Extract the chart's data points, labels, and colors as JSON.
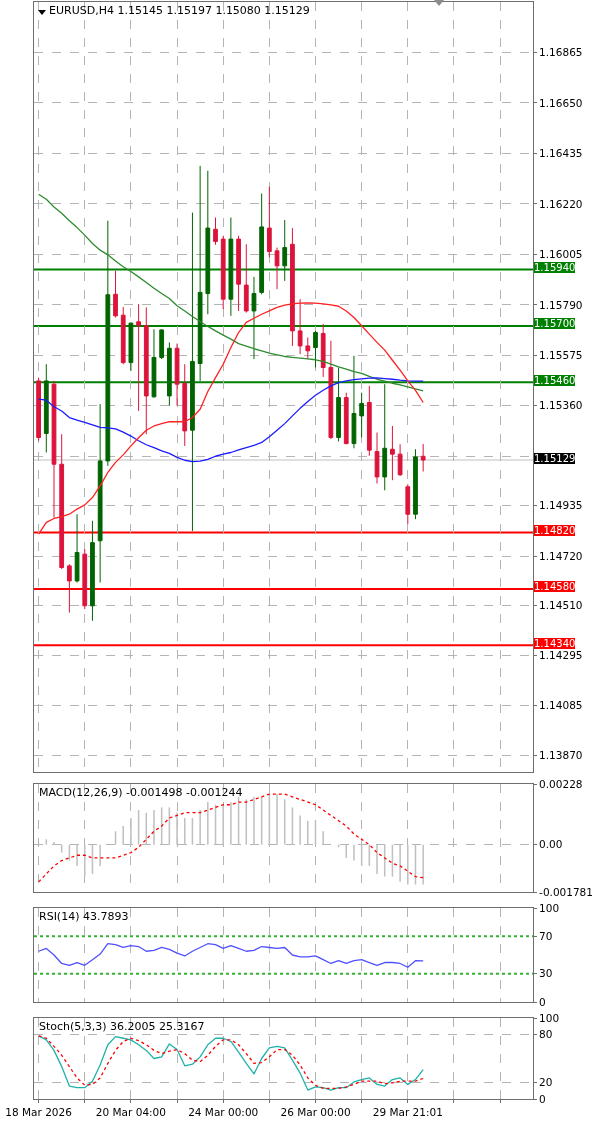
{
  "chart_data": [
    {
      "type": "candlestick",
      "title": "EURUSD,H4 1.15145 1.15197 1.15080 1.15129",
      "categories": [
        null,
        null,
        null,
        null,
        null,
        null,
        null,
        null,
        null,
        null,
        null,
        null,
        null,
        null,
        null,
        null,
        null,
        null,
        null,
        null,
        null,
        null,
        null,
        null,
        null,
        null,
        null,
        null,
        null,
        null,
        null,
        null,
        null,
        null,
        null,
        null,
        null,
        null,
        null,
        null,
        null,
        null,
        null,
        null,
        null,
        null,
        null,
        null,
        null,
        null,
        null
      ],
      "ohlc": [
        [
          1.15466,
          1.1548,
          1.15211,
          1.15225
        ],
        [
          1.15242,
          1.15537,
          1.15161,
          1.15466
        ],
        [
          1.15452,
          1.15466,
          1.14884,
          1.15111
        ],
        [
          1.15111,
          1.15239,
          1.14665,
          1.14671
        ],
        [
          1.14678,
          1.14685,
          1.14479,
          1.14614
        ],
        [
          1.14614,
          1.14898,
          1.14607,
          1.14735
        ],
        [
          1.14728,
          1.14749,
          1.14494,
          1.14508
        ],
        [
          1.14508,
          1.1487,
          1.14444,
          1.14777
        ],
        [
          1.14785,
          1.15367,
          1.14607,
          1.15125
        ],
        [
          1.15125,
          1.16148,
          1.15104,
          1.15833
        ],
        [
          1.15835,
          1.15935,
          1.15736,
          1.15743
        ],
        [
          1.15746,
          1.15781,
          1.15537,
          1.15544
        ],
        [
          1.15544,
          1.15715,
          1.15509,
          1.15712
        ],
        [
          1.15718,
          1.15793,
          1.15338,
          1.15701
        ],
        [
          1.15701,
          1.15779,
          1.15239,
          1.15402
        ],
        [
          1.15398,
          1.15686,
          1.15395,
          1.15566
        ],
        [
          1.15566,
          1.15686,
          1.15559,
          1.15683
        ],
        [
          1.15402,
          1.1563,
          1.1536,
          1.15605
        ],
        [
          1.15605,
          1.15625,
          1.1536,
          1.15452
        ],
        [
          1.15455,
          1.15537,
          1.15189,
          1.15253
        ],
        [
          1.15256,
          1.16183,
          1.14827,
          1.15549
        ],
        [
          1.1554,
          1.16382,
          1.15466,
          1.15843
        ],
        [
          1.15838,
          1.16361,
          1.1575,
          1.16117
        ],
        [
          1.16112,
          1.16162,
          1.16046,
          1.1606
        ],
        [
          1.1607,
          1.16084,
          1.15772,
          1.15814
        ],
        [
          1.15814,
          1.16162,
          1.15743,
          1.1607
        ],
        [
          1.1607,
          1.16084,
          1.15764,
          1.15878
        ],
        [
          1.15874,
          1.16048,
          1.15757,
          1.15764
        ],
        [
          1.15764,
          1.15909,
          1.15559,
          1.15838
        ],
        [
          1.15843,
          1.16264,
          1.15835,
          1.16122
        ],
        [
          1.16117,
          1.16293,
          1.15992,
          1.16017
        ],
        [
          1.1602,
          1.16034,
          1.15857,
          1.15956
        ],
        [
          1.15956,
          1.16151,
          1.15892,
          1.16034
        ],
        [
          1.16048,
          1.16117,
          1.15615,
          1.15679
        ],
        [
          1.15679,
          1.15814,
          1.1558,
          1.15615
        ],
        [
          1.15615,
          1.15651,
          1.15559,
          1.15594
        ],
        [
          1.15608,
          1.15679,
          1.15523,
          1.15672
        ],
        [
          1.15668,
          1.15708,
          1.15483,
          1.15523
        ],
        [
          1.15523,
          1.15637,
          1.15218,
          1.15225
        ],
        [
          1.15225,
          1.15523,
          1.15208,
          1.15395
        ],
        [
          1.15395,
          1.15416,
          1.15196,
          1.15199
        ],
        [
          1.15199,
          1.15573,
          1.15179,
          1.15327
        ],
        [
          1.15317,
          1.15416,
          1.15225,
          1.1537
        ],
        [
          1.15374,
          1.15445,
          1.15147,
          1.15171
        ],
        [
          1.15165,
          1.15246,
          1.15029,
          1.15057
        ],
        [
          1.15057,
          1.15452,
          1.15,
          1.15179
        ],
        [
          1.15175,
          1.15274,
          1.15043,
          1.15154
        ],
        [
          1.15154,
          1.15196,
          1.15062,
          1.15066
        ],
        [
          1.15015,
          1.15026,
          1.14856,
          1.14898
        ],
        [
          1.14898,
          1.15175,
          1.14877,
          1.15142
        ],
        [
          1.15145,
          1.15197,
          1.1508,
          1.15129
        ]
      ],
      "colors": [
        "#dc143c",
        "#006400",
        "#dc143c",
        "#dc143c",
        "#dc143c",
        "#006400",
        "#dc143c",
        "#006400",
        "#006400",
        "#006400",
        "#dc143c",
        "#dc143c",
        "#006400",
        "#dc143c",
        "#dc143c",
        "#006400",
        "#006400",
        "#006400",
        "#dc143c",
        "#dc143c",
        "#006400",
        "#006400",
        "#006400",
        "#dc143c",
        "#dc143c",
        "#006400",
        "#dc143c",
        "#dc143c",
        "#006400",
        "#006400",
        "#dc143c",
        "#dc143c",
        "#006400",
        "#dc143c",
        "#dc143c",
        "#dc143c",
        "#006400",
        "#dc143c",
        "#dc143c",
        "#006400",
        "#dc143c",
        "#006400",
        "#006400",
        "#dc143c",
        "#dc143c",
        "#006400",
        "#dc143c",
        "#dc143c",
        "#dc143c",
        "#006400",
        "#dc143c"
      ],
      "series": [
        {
          "type": "line",
          "color": "#2e8b2e",
          "values": [
            1.16261,
            1.1624,
            1.16207,
            1.1618,
            1.16148,
            1.16119,
            1.16087,
            1.16051,
            1.16023,
            1.16003,
            1.15977,
            1.15952,
            1.15932,
            1.15909,
            1.15885,
            1.15861,
            1.15838,
            1.15817,
            1.15786,
            1.15764,
            1.1574,
            1.15719,
            1.15698,
            1.15679,
            1.15661,
            1.15644,
            1.15625,
            1.15614,
            1.15603,
            1.15594,
            1.15584,
            1.15577,
            1.1557,
            1.15566,
            1.15563,
            1.1556,
            1.15556,
            1.15549,
            1.15537,
            1.15526,
            1.15516,
            1.15506,
            1.15498,
            1.15485,
            1.15473,
            1.15465,
            1.15456,
            1.15449,
            1.15441,
            1.15432,
            1.15424
          ]
        },
        {
          "type": "line",
          "color": "#1a1aff",
          "values": [
            1.15388,
            1.15384,
            1.15356,
            1.15338,
            1.1531,
            1.15299,
            1.15289,
            1.15279,
            1.15268,
            1.15266,
            1.15262,
            1.15248,
            1.15231,
            1.15211,
            1.15194,
            1.15182,
            1.15168,
            1.15157,
            1.1514,
            1.15128,
            1.15122,
            1.15124,
            1.15132,
            1.15145,
            1.15154,
            1.15161,
            1.15172,
            1.15182,
            1.15191,
            1.15204,
            1.15228,
            1.15256,
            1.15284,
            1.15317,
            1.15349,
            1.15378,
            1.15405,
            1.15426,
            1.15445,
            1.15459,
            1.15466,
            1.15471,
            1.15475,
            1.15478,
            1.15479,
            1.15476,
            1.15473,
            1.15469,
            1.15466,
            1.15465,
            1.15465
          ]
        },
        {
          "type": "line",
          "color": "#ff2020",
          "values": [
            1.14813,
            1.14863,
            1.1488,
            1.14888,
            1.14898,
            1.1492,
            1.14938,
            1.14969,
            1.15019,
            1.15076,
            1.15119,
            1.15151,
            1.15189,
            1.15224,
            1.15256,
            1.15274,
            1.15284,
            1.15292,
            1.15292,
            1.15292,
            1.1531,
            1.15345,
            1.15421,
            1.1548,
            1.15537,
            1.15608,
            1.15672,
            1.15715,
            1.15733,
            1.1575,
            1.15764,
            1.15779,
            1.15789,
            1.15794,
            1.15797,
            1.15798,
            1.15797,
            1.15794,
            1.1579,
            1.15784,
            1.15764,
            1.15736,
            1.15701,
            1.15665,
            1.1563,
            1.15597,
            1.15554,
            1.15512,
            1.15466,
            1.15426,
            1.15374
          ]
        }
      ],
      "ylim": [
        1.138,
        1.1708
      ],
      "yticks": [
        1.16865,
        {
          "value": 1.1665,
          "label": "1.16650"
        },
        1.16435,
        {
          "value": 1.1622,
          "label": "1.16220"
        },
        1.16005,
        {
          "value": 1.1579,
          "label": "1.15790"
        },
        1.15575,
        {
          "value": 1.1536,
          "label": "1.15360"
        },
        {
          "value": 1.15145,
          "label": null
        },
        1.14935,
        {
          "value": 1.1472,
          "label": "1.14720"
        },
        {
          "value": 1.1451,
          "label": "1.14510"
        },
        1.14295,
        1.14085,
        {
          "value": 1.1387,
          "label": "1.13870"
        }
      ],
      "ref_lines": [
        {
          "axis": "y",
          "value": 1.1594,
          "label": "1.15940",
          "color": "#008000"
        },
        {
          "axis": "y",
          "value": 1.157,
          "label": "1.15700",
          "color": "#008000"
        },
        {
          "axis": "y",
          "value": 1.1546,
          "label": "1.15460",
          "color": "#008000"
        },
        {
          "axis": "y",
          "value": 1.15129,
          "label": "1.15129",
          "color": "#c0c0c0"
        },
        {
          "axis": "y",
          "value": 1.1482,
          "label": "1.14820",
          "color": "#ff0000"
        },
        {
          "axis": "y",
          "value": 1.1458,
          "label": "1.14580",
          "color": "#ff0000"
        },
        {
          "axis": "y",
          "value": 1.1434,
          "label": "1.14340",
          "color": "#ff0000"
        }
      ],
      "grid": true,
      "tick_labels": "y"
    },
    {
      "type": "bar",
      "title": "MACD(12,26,9) -0.001498 -0.001244",
      "categories": [
        null,
        null,
        null,
        null,
        null,
        null,
        null,
        null,
        null,
        null,
        null,
        null,
        null,
        null,
        null,
        null,
        null,
        null,
        null,
        null,
        null,
        null,
        null,
        null,
        null,
        null,
        null,
        null,
        null,
        null,
        null,
        null,
        null,
        null,
        null,
        null,
        null,
        null,
        null,
        null,
        null,
        null,
        null,
        null,
        null,
        null,
        null,
        null,
        null,
        null,
        null
      ],
      "series": [
        {
          "color": "#c0c0c0",
          "values": [
            null,
            0.0002,
            0.0001,
            -0.0003,
            -0.0006,
            -0.0008,
            -0.0012,
            -0.0011,
            -0.0008,
            null,
            0.0005,
            0.0007,
            0.001,
            0.0013,
            0.0012,
            0.0013,
            0.0014,
            0.0014,
            0.0012,
            0.001,
            0.001,
            0.0013,
            0.0016,
            0.0015,
            0.0015,
            0.0016,
            0.0018,
            0.0017,
            0.0018,
            0.0018,
            0.0019,
            0.0019,
            0.0017,
            0.0014,
            0.0011,
            0.0009,
            0.0009,
            0.0005,
            null,
            -0.0001,
            -0.0005,
            -0.0006,
            -0.0008,
            -0.0008,
            -0.0011,
            -0.0012,
            -0.0012,
            -0.0014,
            -0.0015,
            -0.0015,
            -0.001498
          ]
        },
        {
          "type": "line",
          "color": "#ff0000",
          "line_style": "dotted",
          "values": [
            -0.0014,
            -0.0011,
            -0.0008,
            -0.0006,
            -0.0005,
            -0.0004,
            -0.0004,
            -0.0005,
            -0.0005,
            -0.0005,
            -0.0005,
            -0.0004,
            -0.0003,
            -0.0001,
            0.0002,
            0.0005,
            0.0007,
            0.001,
            0.0011,
            0.0012,
            0.0012,
            0.0012,
            0.0013,
            0.0014,
            0.0015,
            0.0015,
            0.0016,
            0.0016,
            0.0017,
            0.0018,
            0.0019,
            0.0019,
            0.0019,
            0.0018,
            0.0017,
            0.0016,
            0.0015,
            0.0013,
            0.0011,
            0.0009,
            0.0007,
            0.0004,
            0.0002,
            0,
            -0.0003,
            -0.0005,
            -0.0007,
            -0.0008,
            -0.001,
            -0.0012,
            -0.001244
          ]
        }
      ],
      "ylim": [
        -0.001781,
        0.00228
      ],
      "yticks": [
        0.00228,
        {
          "value": 0,
          "label": "0.00"
        },
        -0.001781
      ],
      "grid": true,
      "tick_labels": "y"
    },
    {
      "type": "line",
      "title": "RSI(14) 43.7893",
      "categories": [
        null,
        null,
        null,
        null,
        null,
        null,
        null,
        null,
        null,
        null,
        null,
        null,
        null,
        null,
        null,
        null,
        null,
        null,
        null,
        null,
        null,
        null,
        null,
        null,
        null,
        null,
        null,
        null,
        null,
        null,
        null,
        null,
        null,
        null,
        null,
        null,
        null,
        null,
        null,
        null,
        null,
        null,
        null,
        null,
        null,
        null,
        null,
        null,
        null,
        null,
        null
      ],
      "series": [
        {
          "color": "#5050ff",
          "values": [
            54,
            57,
            50,
            41,
            39,
            42,
            39,
            45,
            51,
            62,
            61,
            58,
            60,
            59,
            54,
            55,
            58,
            56,
            52,
            49,
            54,
            58,
            62,
            61,
            57,
            60,
            57,
            54,
            55,
            59,
            58,
            57,
            58,
            50,
            48,
            48,
            49,
            45,
            41,
            44,
            41,
            44,
            45,
            42,
            39,
            42,
            42,
            41,
            37,
            44,
            43.7893
          ]
        }
      ],
      "ylim": [
        0,
        100
      ],
      "yticks": [
        0,
        30,
        70,
        100
      ],
      "ref_lines": [
        {
          "axis": "y",
          "value": 70,
          "color": "#32b432",
          "line_style": "dotted"
        },
        {
          "axis": "y",
          "value": 30,
          "color": "#32b432",
          "line_style": "dotted"
        }
      ],
      "grid": "x",
      "tick_labels": "y"
    },
    {
      "type": "line",
      "title": "Stoch(5,3,3) 36.2005 25.3167",
      "categories": [
        "18 Mar 2026",
        null,
        null,
        null,
        null,
        null,
        null,
        null,
        null,
        null,
        null,
        null,
        "20 Mar 04:00",
        null,
        null,
        null,
        null,
        null,
        null,
        null,
        null,
        null,
        null,
        null,
        "24 Mar 00:00",
        null,
        null,
        null,
        null,
        null,
        null,
        null,
        null,
        null,
        null,
        null,
        "26 Mar 00:00",
        null,
        null,
        null,
        null,
        null,
        null,
        null,
        null,
        null,
        null,
        null,
        "29 Mar 21:01",
        null,
        null
      ],
      "series": [
        {
          "color": "#20b2aa",
          "values": [
            78,
            73,
            60,
            40,
            16,
            14,
            14,
            22,
            42,
            67,
            77,
            75,
            73,
            67,
            60,
            50,
            52,
            68,
            61,
            41,
            43,
            52,
            67,
            75,
            75,
            71,
            58,
            44,
            31,
            50,
            63,
            65,
            63,
            48,
            32,
            11,
            15,
            14,
            11,
            14,
            14,
            21,
            24,
            26,
            18,
            16,
            24,
            26,
            18,
            24,
            36.2005
          ]
        },
        {
          "color": "#ff0000",
          "line_style": "dotted",
          "values": [
            78,
            75,
            65,
            54,
            40,
            26,
            17,
            18,
            26,
            44,
            60,
            71,
            75,
            72,
            67,
            60,
            56,
            59,
            61,
            56,
            48,
            46,
            54,
            65,
            73,
            73,
            67,
            56,
            44,
            45,
            52,
            61,
            61,
            54,
            42,
            26,
            17,
            13,
            13,
            13,
            15,
            18,
            22,
            22,
            22,
            19,
            20,
            22,
            22,
            22,
            25.3167
          ]
        }
      ],
      "ylim": [
        0,
        100
      ],
      "yticks": [
        0,
        20,
        80,
        100
      ],
      "grid": true
    }
  ]
}
